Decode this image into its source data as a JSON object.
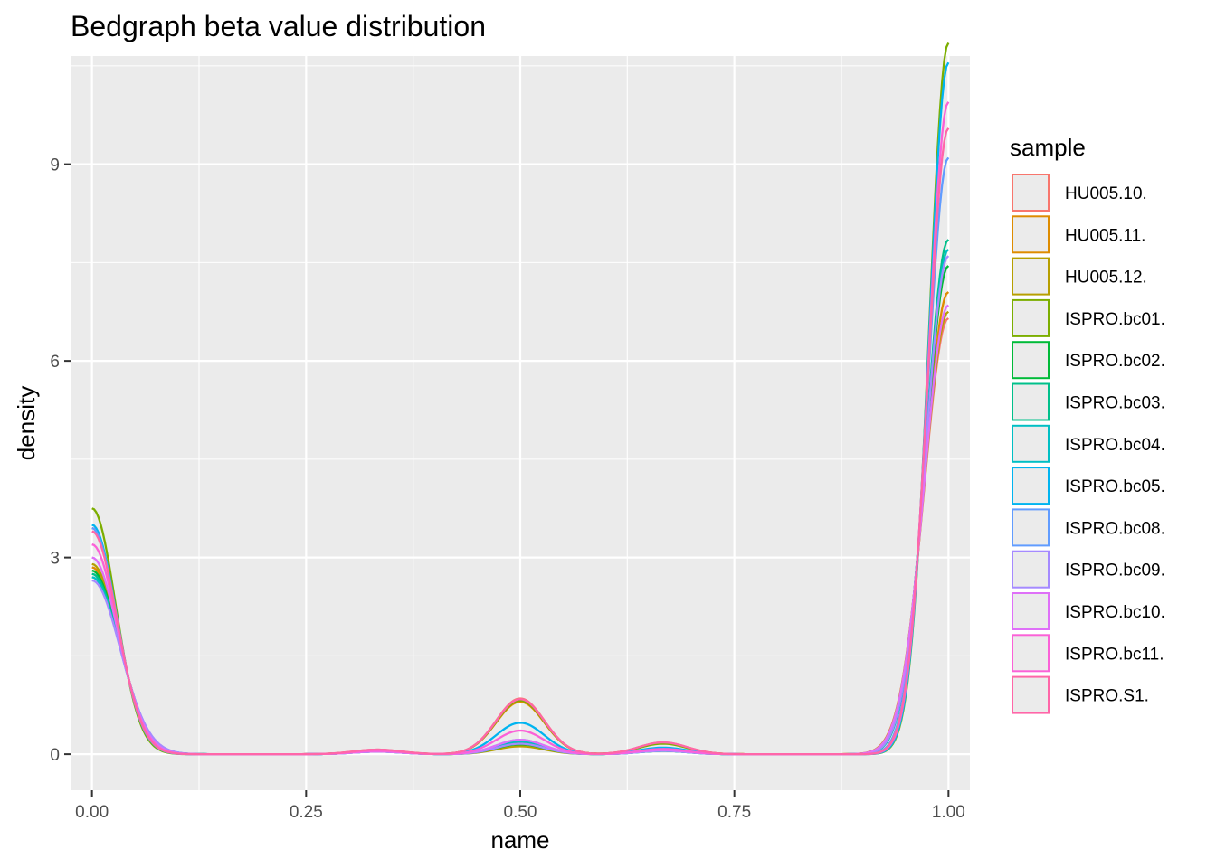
{
  "chart_data": {
    "type": "line",
    "title": "Bedgraph beta value distribution",
    "xlabel": "name",
    "ylabel": "density",
    "xlim": [
      -0.025,
      1.025
    ],
    "ylim": [
      -0.55,
      10.65
    ],
    "x_ticks": [
      0.0,
      0.25,
      0.5,
      0.75,
      1.0
    ],
    "x_tick_labels": [
      "0.00",
      "0.25",
      "0.50",
      "0.75",
      "1.00"
    ],
    "y_ticks": [
      0,
      3,
      6,
      9
    ],
    "y_tick_labels": [
      "0",
      "3",
      "6",
      "9"
    ],
    "grid": true,
    "legend": {
      "title": "sample",
      "placement": "right"
    },
    "series": [
      {
        "name": "HU005.10.",
        "color": "#F8766D",
        "left_peak": 3.45,
        "mid_peak": 0.85,
        "third_peak": 0.07,
        "two_thirds_peak": 0.18,
        "right_peak": 6.65
      },
      {
        "name": "HU005.11.",
        "color": "#DE8C00",
        "left_peak": 2.85,
        "mid_peak": 0.8,
        "third_peak": 0.06,
        "two_thirds_peak": 0.17,
        "right_peak": 7.05
      },
      {
        "name": "HU005.12.",
        "color": "#B79F00",
        "left_peak": 2.9,
        "mid_peak": 0.12,
        "third_peak": 0.05,
        "two_thirds_peak": 0.06,
        "right_peak": 6.75
      },
      {
        "name": "ISPRO.bc01.",
        "color": "#7CAE00",
        "left_peak": 3.75,
        "mid_peak": 0.82,
        "third_peak": 0.06,
        "two_thirds_peak": 0.16,
        "right_peak": 10.85
      },
      {
        "name": "ISPRO.bc02.",
        "color": "#00BA38",
        "left_peak": 2.8,
        "mid_peak": 0.15,
        "third_peak": 0.04,
        "two_thirds_peak": 0.05,
        "right_peak": 7.45
      },
      {
        "name": "ISPRO.bc03.",
        "color": "#00C08B",
        "left_peak": 2.75,
        "mid_peak": 0.18,
        "third_peak": 0.04,
        "two_thirds_peak": 0.05,
        "right_peak": 7.85
      },
      {
        "name": "ISPRO.bc04.",
        "color": "#00BFC4",
        "left_peak": 2.7,
        "mid_peak": 0.2,
        "third_peak": 0.04,
        "two_thirds_peak": 0.05,
        "right_peak": 7.7
      },
      {
        "name": "ISPRO.bc05.",
        "color": "#00B4F0",
        "left_peak": 3.5,
        "mid_peak": 0.48,
        "third_peak": 0.05,
        "two_thirds_peak": 0.1,
        "right_peak": 10.55
      },
      {
        "name": "ISPRO.bc08.",
        "color": "#619CFF",
        "left_peak": 3.45,
        "mid_peak": 0.22,
        "third_peak": 0.04,
        "two_thirds_peak": 0.06,
        "right_peak": 9.1
      },
      {
        "name": "ISPRO.bc09.",
        "color": "#A58AFF",
        "left_peak": 2.65,
        "mid_peak": 0.16,
        "third_peak": 0.04,
        "two_thirds_peak": 0.05,
        "right_peak": 7.6
      },
      {
        "name": "ISPRO.bc10.",
        "color": "#DF70F8",
        "left_peak": 3.0,
        "mid_peak": 0.22,
        "third_peak": 0.04,
        "two_thirds_peak": 0.06,
        "right_peak": 6.85
      },
      {
        "name": "ISPRO.bc11.",
        "color": "#FB61D7",
        "left_peak": 3.2,
        "mid_peak": 0.36,
        "third_peak": 0.05,
        "two_thirds_peak": 0.08,
        "right_peak": 9.95
      },
      {
        "name": "ISPRO.S1.",
        "color": "#FF66A8",
        "left_peak": 3.4,
        "mid_peak": 0.84,
        "third_peak": 0.07,
        "two_thirds_peak": 0.18,
        "right_peak": 9.55
      }
    ]
  }
}
